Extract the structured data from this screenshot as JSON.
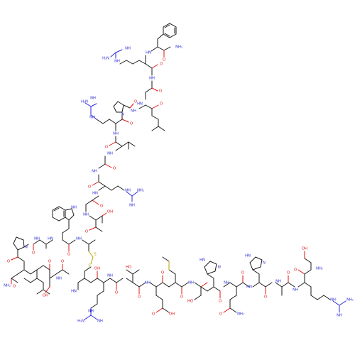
{
  "molecule": {
    "atom_colors": {
      "N": "#2b2bd6",
      "O": "#e01010",
      "S": "#b8a000",
      "C": "#1a1a1a"
    },
    "labels": {
      "nh2": "NH₂",
      "nh": "NH",
      "hn": "HN",
      "h2n": "H₂N",
      "n": "N",
      "o": "O",
      "oh": "OH",
      "ho": "HO",
      "s": "S",
      "h": "H",
      "o_dot": "O·"
    }
  }
}
